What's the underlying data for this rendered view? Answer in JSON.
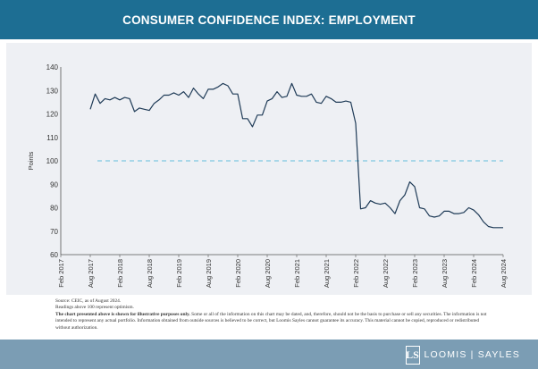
{
  "header": {
    "title": "CONSUMER CONFIDENCE INDEX: EMPLOYMENT"
  },
  "chart_data": {
    "type": "line",
    "title": "",
    "xlabel": "",
    "ylabel": "Points",
    "ylim": [
      60,
      140
    ],
    "yticks": [
      60,
      70,
      80,
      90,
      100,
      110,
      120,
      130,
      140
    ],
    "xlim": [
      "2017-02",
      "2024-08"
    ],
    "xticks": [
      "Feb 2017",
      "Aug 2017",
      "Feb 2018",
      "Aug 2018",
      "Feb 2019",
      "Aug 2019",
      "Feb 2020",
      "Aug 2020",
      "Feb 2021",
      "Aug 2021",
      "Feb 2022",
      "Aug 2022",
      "Feb 2023",
      "Aug 2023",
      "Feb 2024",
      "Aug 2024"
    ],
    "grid": false,
    "reference_line": {
      "y": 100,
      "style": "dashed",
      "color": "#7fc8e0"
    },
    "line_color": "#1f3b57",
    "series": [
      {
        "x": [
          "2017-08",
          "2017-09",
          "2017-10",
          "2017-11",
          "2017-12",
          "2018-01",
          "2018-02",
          "2018-03",
          "2018-04",
          "2018-05",
          "2018-06",
          "2018-07",
          "2018-08",
          "2018-09",
          "2018-10",
          "2018-11",
          "2018-12",
          "2019-01",
          "2019-02",
          "2019-03",
          "2019-04",
          "2019-05",
          "2019-06",
          "2019-07",
          "2019-08",
          "2019-09",
          "2019-10",
          "2019-11",
          "2019-12",
          "2020-01",
          "2020-02",
          "2020-03",
          "2020-04",
          "2020-05",
          "2020-06",
          "2020-07",
          "2020-08",
          "2020-09",
          "2020-10",
          "2020-11",
          "2020-12",
          "2021-01",
          "2021-02",
          "2021-03",
          "2021-04",
          "2021-05",
          "2021-06",
          "2021-07",
          "2021-08",
          "2021-09",
          "2021-10",
          "2021-11",
          "2021-12",
          "2022-01",
          "2022-02",
          "2022-03",
          "2022-04",
          "2022-05",
          "2022-06",
          "2022-07",
          "2022-08",
          "2022-09",
          "2022-10",
          "2022-11",
          "2022-12",
          "2023-01",
          "2023-02",
          "2023-03",
          "2023-04",
          "2023-05",
          "2023-06",
          "2023-07",
          "2023-08",
          "2023-09",
          "2023-10",
          "2023-11",
          "2023-12",
          "2024-01",
          "2024-02",
          "2024-03",
          "2024-04",
          "2024-05",
          "2024-06",
          "2024-07",
          "2024-08"
        ],
        "values": [
          122,
          128.5,
          124.5,
          126.5,
          126,
          127,
          126,
          127,
          126.5,
          121,
          122.5,
          122,
          121.5,
          124.5,
          126,
          128,
          128,
          129,
          128,
          129.5,
          127,
          131,
          128.5,
          126.5,
          130.5,
          130.5,
          131.5,
          133,
          132,
          128.5,
          128.5,
          118,
          118,
          114.5,
          119.5,
          119.5,
          125.5,
          126.5,
          129.5,
          127,
          127.5,
          133,
          128,
          127.5,
          127.5,
          128.5,
          125,
          124.5,
          127.5,
          126.5,
          125,
          125,
          125.5,
          125,
          116,
          79.5,
          80,
          83,
          82,
          81.5,
          82,
          80,
          77.5,
          83,
          85.5,
          91,
          89,
          80,
          79.5,
          76.5,
          76,
          76.5,
          78.5,
          78.5,
          77.5,
          77.5,
          78,
          80,
          79,
          77,
          74,
          72,
          71.5,
          71.5,
          71.5
        ]
      }
    ]
  },
  "footnotes": {
    "source": "Source: CEIC, as of August 2024.",
    "readings": "Readings above 100 represent optimism.",
    "bold": "The chart presented above is shown for illustrative purposes only.",
    "body": " Some or all of the information on this chart may be dated, and, therefore, should not be the basis to purchase or sell any securities. The information is not intended to represent any actual portfolio. Information obtained from outside sources is believed to be correct, but Loomis Sayles cannot guarantee its accuracy. This material cannot be copied, reproduced or redistributed without authorization."
  },
  "logo": {
    "mark": "LS",
    "text": "LOOMIS | SAYLES"
  }
}
